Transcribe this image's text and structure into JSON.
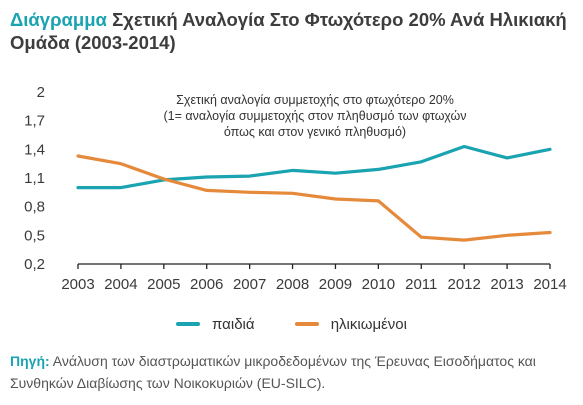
{
  "header": {
    "lead": "Διάγραμμα",
    "title": "Σχετική Αναλογία Στο Φτωχότερο 20% Ανά Ηλικιακή Ομάδα (2003-2014)"
  },
  "source": {
    "label": "Πηγή:",
    "text": "Ανάλυση των διαστρωματικών μικροδεδομένων της Έρευνας Εισοδήματος και Συνθηκών Διαβίωσης των Νοικοκυριών (EU-SILC)."
  },
  "chart_data": {
    "type": "line",
    "annotation": [
      "Σχετική αναλογία συμμετοχής στο φτωχότερο 20%",
      "(1= αναλογία συμμετοχής στον πληθυσμό των φτωχών",
      "όπως και στον γενικό πληθυσμό)"
    ],
    "x": [
      "2003",
      "2004",
      "2005",
      "2006",
      "2007",
      "2008",
      "2009",
      "2010",
      "2011",
      "2012",
      "2013",
      "2014"
    ],
    "ylim": [
      0.2,
      2
    ],
    "yticks": [
      "0,2",
      "0,5",
      "0,8",
      "1,1",
      "1,4",
      "1,7",
      "2"
    ],
    "ytick_values": [
      0.2,
      0.5,
      0.8,
      1.1,
      1.4,
      1.7,
      2
    ],
    "grid": false,
    "legend_position": "bottom",
    "series": [
      {
        "name": "παιδιά",
        "color": "#1aa3b0",
        "values": [
          1.0,
          1.0,
          1.08,
          1.11,
          1.12,
          1.18,
          1.15,
          1.19,
          1.27,
          1.43,
          1.31,
          1.4
        ]
      },
      {
        "name": "ηλικιωμένοι",
        "color": "#e58a3a",
        "values": [
          1.33,
          1.25,
          1.09,
          0.97,
          0.95,
          0.94,
          0.88,
          0.86,
          0.48,
          0.45,
          0.5,
          0.53
        ]
      }
    ]
  }
}
